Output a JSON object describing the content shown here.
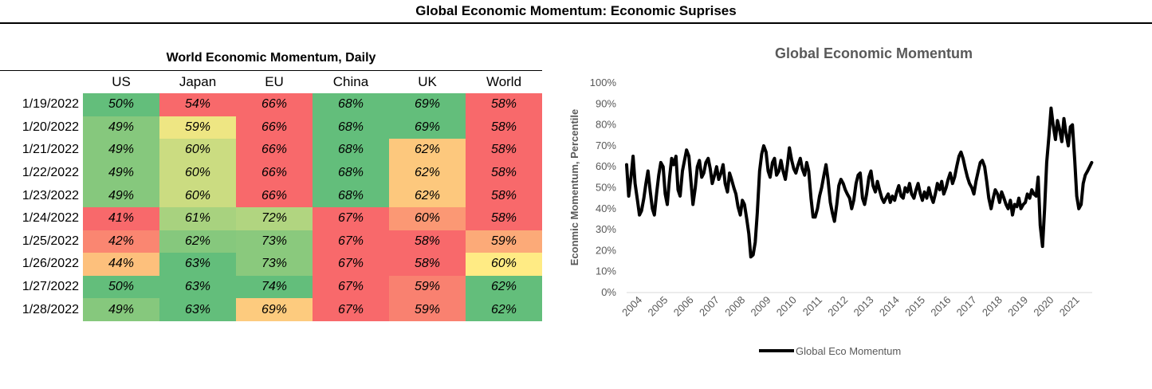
{
  "title": "Global Economic Momentum: Economic Suprises",
  "table": {
    "title": "World Economic Momentum, Daily",
    "columns": [
      "US",
      "Japan",
      "EU",
      "China",
      "UK",
      "World"
    ],
    "rows": [
      {
        "date": "1/19/2022",
        "values": [
          "50%",
          "54%",
          "66%",
          "68%",
          "69%",
          "58%"
        ]
      },
      {
        "date": "1/20/2022",
        "values": [
          "49%",
          "59%",
          "66%",
          "68%",
          "69%",
          "58%"
        ]
      },
      {
        "date": "1/21/2022",
        "values": [
          "49%",
          "60%",
          "66%",
          "68%",
          "62%",
          "58%"
        ]
      },
      {
        "date": "1/22/2022",
        "values": [
          "49%",
          "60%",
          "66%",
          "68%",
          "62%",
          "58%"
        ]
      },
      {
        "date": "1/23/2022",
        "values": [
          "49%",
          "60%",
          "66%",
          "68%",
          "62%",
          "58%"
        ]
      },
      {
        "date": "1/24/2022",
        "values": [
          "41%",
          "61%",
          "72%",
          "67%",
          "60%",
          "58%"
        ]
      },
      {
        "date": "1/25/2022",
        "values": [
          "42%",
          "62%",
          "73%",
          "67%",
          "58%",
          "59%"
        ]
      },
      {
        "date": "1/26/2022",
        "values": [
          "44%",
          "63%",
          "73%",
          "67%",
          "58%",
          "60%"
        ]
      },
      {
        "date": "1/27/2022",
        "values": [
          "50%",
          "63%",
          "74%",
          "67%",
          "59%",
          "62%"
        ]
      },
      {
        "date": "1/28/2022",
        "values": [
          "49%",
          "63%",
          "69%",
          "67%",
          "59%",
          "62%"
        ]
      }
    ],
    "colors": {
      "low": "#f8696b",
      "mid": "#ffeb84",
      "high": "#63be7b"
    }
  },
  "chart_data": {
    "type": "line",
    "title": "Global Economic Momentum",
    "xlabel": "",
    "ylabel": "Econmic Momentum, Percentile",
    "ylim": [
      0,
      100
    ],
    "yticks": [
      "0%",
      "10%",
      "20%",
      "30%",
      "40%",
      "50%",
      "60%",
      "70%",
      "80%",
      "90%",
      "100%"
    ],
    "xticks": [
      "2004",
      "2005",
      "2006",
      "2007",
      "2008",
      "2009",
      "2010",
      "2011",
      "2012",
      "2013",
      "2014",
      "2015",
      "2016",
      "2017",
      "2018",
      "2019",
      "2020",
      "2021"
    ],
    "xlim": [
      2004.0,
      2022.1
    ],
    "grid": false,
    "legend": "bottom",
    "series": [
      {
        "name": "Global Eco Momentum",
        "color": "#000000",
        "x": [
          2004.0,
          2004.08,
          2004.17,
          2004.25,
          2004.33,
          2004.42,
          2004.5,
          2004.58,
          2004.67,
          2004.75,
          2004.83,
          2004.92,
          2005.0,
          2005.08,
          2005.17,
          2005.25,
          2005.33,
          2005.42,
          2005.5,
          2005.58,
          2005.67,
          2005.75,
          2005.83,
          2005.92,
          2006.0,
          2006.08,
          2006.17,
          2006.25,
          2006.33,
          2006.42,
          2006.5,
          2006.58,
          2006.67,
          2006.75,
          2006.83,
          2006.92,
          2007.0,
          2007.08,
          2007.17,
          2007.25,
          2007.33,
          2007.42,
          2007.5,
          2007.58,
          2007.67,
          2007.75,
          2007.83,
          2007.92,
          2008.0,
          2008.08,
          2008.17,
          2008.25,
          2008.33,
          2008.42,
          2008.5,
          2008.58,
          2008.67,
          2008.75,
          2008.83,
          2008.92,
          2009.0,
          2009.08,
          2009.17,
          2009.25,
          2009.33,
          2009.42,
          2009.5,
          2009.58,
          2009.67,
          2009.75,
          2009.83,
          2009.92,
          2010.0,
          2010.08,
          2010.17,
          2010.25,
          2010.33,
          2010.42,
          2010.5,
          2010.58,
          2010.67,
          2010.75,
          2010.83,
          2010.92,
          2011.0,
          2011.08,
          2011.17,
          2011.25,
          2011.33,
          2011.42,
          2011.5,
          2011.58,
          2011.67,
          2011.75,
          2011.83,
          2011.92,
          2012.0,
          2012.08,
          2012.17,
          2012.25,
          2012.33,
          2012.42,
          2012.5,
          2012.58,
          2012.67,
          2012.75,
          2012.83,
          2012.92,
          2013.0,
          2013.08,
          2013.17,
          2013.25,
          2013.33,
          2013.42,
          2013.5,
          2013.58,
          2013.67,
          2013.75,
          2013.83,
          2013.92,
          2014.0,
          2014.08,
          2014.17,
          2014.25,
          2014.33,
          2014.42,
          2014.5,
          2014.58,
          2014.67,
          2014.75,
          2014.83,
          2014.92,
          2015.0,
          2015.08,
          2015.17,
          2015.25,
          2015.33,
          2015.42,
          2015.5,
          2015.58,
          2015.67,
          2015.75,
          2015.83,
          2015.92,
          2016.0,
          2016.08,
          2016.17,
          2016.25,
          2016.33,
          2016.42,
          2016.5,
          2016.58,
          2016.67,
          2016.75,
          2016.83,
          2016.92,
          2017.0,
          2017.08,
          2017.17,
          2017.25,
          2017.33,
          2017.42,
          2017.5,
          2017.58,
          2017.67,
          2017.75,
          2017.83,
          2017.92,
          2018.0,
          2018.08,
          2018.17,
          2018.25,
          2018.33,
          2018.42,
          2018.5,
          2018.58,
          2018.67,
          2018.75,
          2018.83,
          2018.92,
          2019.0,
          2019.08,
          2019.17,
          2019.25,
          2019.33,
          2019.42,
          2019.5,
          2019.58,
          2019.67,
          2019.75,
          2019.83,
          2019.92,
          2020.0,
          2020.08,
          2020.17,
          2020.25,
          2020.33,
          2020.42,
          2020.5,
          2020.58,
          2020.67,
          2020.75,
          2020.83,
          2020.92,
          2021.0,
          2021.08,
          2021.17,
          2021.25,
          2021.33,
          2021.42,
          2021.5,
          2021.58,
          2021.67,
          2021.75,
          2021.83,
          2021.92,
          2022.0,
          2022.08
        ],
        "y": [
          61,
          46,
          55,
          65,
          52,
          44,
          37,
          39,
          45,
          52,
          58,
          48,
          40,
          37,
          48,
          56,
          62,
          60,
          47,
          42,
          55,
          64,
          61,
          65,
          49,
          46,
          58,
          63,
          68,
          65,
          53,
          42,
          50,
          60,
          63,
          55,
          57,
          62,
          64,
          59,
          52,
          56,
          60,
          54,
          57,
          61,
          52,
          48,
          57,
          54,
          50,
          47,
          41,
          37,
          44,
          42,
          35,
          28,
          17,
          18,
          24,
          38,
          58,
          66,
          70,
          67,
          58,
          55,
          62,
          64,
          56,
          58,
          63,
          58,
          54,
          61,
          69,
          63,
          59,
          57,
          61,
          64,
          59,
          56,
          62,
          58,
          45,
          36,
          36,
          40,
          46,
          50,
          56,
          61,
          54,
          43,
          38,
          34,
          42,
          51,
          54,
          52,
          49,
          47,
          45,
          40,
          44,
          52,
          56,
          57,
          45,
          42,
          47,
          55,
          58,
          51,
          48,
          53,
          49,
          45,
          43,
          45,
          47,
          43,
          46,
          44,
          48,
          51,
          46,
          45,
          50,
          48,
          52,
          47,
          45,
          49,
          52,
          47,
          44,
          48,
          45,
          50,
          46,
          43,
          47,
          52,
          49,
          53,
          47,
          50,
          54,
          57,
          52,
          55,
          60,
          65,
          67,
          64,
          59,
          55,
          52,
          50,
          47,
          53,
          58,
          62,
          63,
          60,
          53,
          45,
          40,
          45,
          49,
          47,
          43,
          48,
          45,
          42,
          40,
          44,
          37,
          42,
          41,
          45,
          40,
          42,
          43,
          47,
          45,
          49,
          47,
          46,
          55,
          32,
          22,
          40,
          62,
          75,
          88,
          80,
          73,
          82,
          78,
          72,
          83,
          76,
          70,
          79,
          80,
          63,
          46,
          40,
          42,
          52,
          56,
          58,
          60,
          62
        ]
      }
    ]
  }
}
